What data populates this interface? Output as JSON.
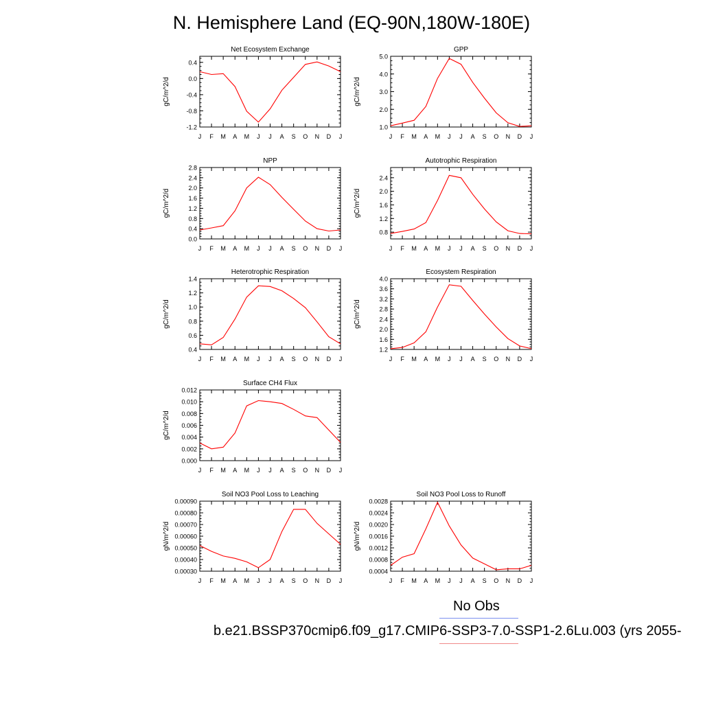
{
  "title": "N. Hemisphere Land (EQ-90N,180W-180E)",
  "legend": {
    "obs_label": "No Obs",
    "obs_color": "#7b8ff0",
    "case_label": "b.e21.BSSP370cmip6.f09_g17.CMIP6-SSP3-7.0-SSP1-2.6Lu.003 (yrs 2055-",
    "case_color": "#f08a8a"
  },
  "chart_data": [
    {
      "type": "line",
      "title": "Net Ecosystem Exchange",
      "ylabel": "gC/m^2/d",
      "categories": [
        "J",
        "F",
        "M",
        "A",
        "M",
        "J",
        "J",
        "A",
        "S",
        "O",
        "N",
        "D",
        "J"
      ],
      "ylim": [
        -1.2,
        0.55
      ],
      "yticks": [
        -1.2,
        -0.8,
        -0.4,
        0.0,
        0.4
      ],
      "ytick_labels": [
        "-1.2",
        "-0.8",
        "-0.4",
        "0.0",
        "0.4"
      ],
      "series": [
        {
          "values": [
            0.17,
            0.1,
            0.12,
            -0.2,
            -0.81,
            -1.08,
            -0.75,
            -0.29,
            0.03,
            0.35,
            0.41,
            0.31,
            0.17
          ],
          "color": "#ff0000"
        }
      ]
    },
    {
      "type": "line",
      "title": "GPP",
      "ylabel": "gC/m^2/d",
      "categories": [
        "J",
        "F",
        "M",
        "A",
        "M",
        "J",
        "J",
        "A",
        "S",
        "O",
        "N",
        "D",
        "J"
      ],
      "ylim": [
        1.0,
        5.0
      ],
      "yticks": [
        1.0,
        2.0,
        3.0,
        4.0,
        5.0
      ],
      "ytick_labels": [
        "1.0",
        "2.0",
        "3.0",
        "4.0",
        "5.0"
      ],
      "series": [
        {
          "values": [
            1.07,
            1.22,
            1.38,
            2.16,
            3.75,
            4.88,
            4.55,
            3.52,
            2.63,
            1.8,
            1.24,
            1.03,
            1.07
          ],
          "color": "#ff0000"
        }
      ]
    },
    {
      "type": "line",
      "title": "NPP",
      "ylabel": "gC/m^2/d",
      "categories": [
        "J",
        "F",
        "M",
        "A",
        "M",
        "J",
        "J",
        "A",
        "S",
        "O",
        "N",
        "D",
        "J"
      ],
      "ylim": [
        0.0,
        2.8
      ],
      "yticks": [
        0.0,
        0.4,
        0.8,
        1.2,
        1.6,
        2.0,
        2.4,
        2.8
      ],
      "ytick_labels": [
        "0.0",
        "0.4",
        "0.8",
        "1.2",
        "1.6",
        "2.0",
        "2.4",
        "2.8"
      ],
      "series": [
        {
          "values": [
            0.35,
            0.43,
            0.52,
            1.1,
            2.0,
            2.42,
            2.13,
            1.63,
            1.16,
            0.7,
            0.4,
            0.31,
            0.35
          ],
          "color": "#ff0000"
        }
      ]
    },
    {
      "type": "line",
      "title": "Autotrophic Respiration",
      "ylabel": "gC/m^2/d",
      "categories": [
        "J",
        "F",
        "M",
        "A",
        "M",
        "J",
        "J",
        "A",
        "S",
        "O",
        "N",
        "D",
        "J"
      ],
      "ylim": [
        0.6,
        2.7
      ],
      "yticks": [
        0.8,
        1.2,
        1.6,
        2.0,
        2.4
      ],
      "ytick_labels": [
        "0.8",
        "1.2",
        "1.6",
        "2.0",
        "2.4"
      ],
      "series": [
        {
          "values": [
            0.76,
            0.82,
            0.89,
            1.08,
            1.73,
            2.47,
            2.4,
            1.91,
            1.48,
            1.1,
            0.84,
            0.76,
            0.75
          ],
          "color": "#ff0000"
        }
      ]
    },
    {
      "type": "line",
      "title": "Heterotrophic Respiration",
      "ylabel": "gC/m^2/d",
      "categories": [
        "J",
        "F",
        "M",
        "A",
        "M",
        "J",
        "J",
        "A",
        "S",
        "O",
        "N",
        "D",
        "J"
      ],
      "ylim": [
        0.4,
        1.4
      ],
      "yticks": [
        0.4,
        0.6,
        0.8,
        1.0,
        1.2,
        1.4
      ],
      "ytick_labels": [
        "0.4",
        "0.6",
        "0.8",
        "1.0",
        "1.2",
        "1.4"
      ],
      "series": [
        {
          "values": [
            0.48,
            0.465,
            0.57,
            0.83,
            1.14,
            1.3,
            1.29,
            1.23,
            1.12,
            0.99,
            0.79,
            0.58,
            0.48
          ],
          "color": "#ff0000"
        }
      ]
    },
    {
      "type": "line",
      "title": "Ecosystem Respiration",
      "ylabel": "gC/m^2/d",
      "categories": [
        "J",
        "F",
        "M",
        "A",
        "M",
        "J",
        "J",
        "A",
        "S",
        "O",
        "N",
        "D",
        "J"
      ],
      "ylim": [
        1.2,
        4.0
      ],
      "yticks": [
        1.2,
        1.6,
        2.0,
        2.4,
        2.8,
        3.2,
        3.6,
        4.0
      ],
      "ytick_labels": [
        "1.2",
        "1.6",
        "2.0",
        "2.4",
        "2.8",
        "3.2",
        "3.6",
        "4.0"
      ],
      "series": [
        {
          "values": [
            1.23,
            1.28,
            1.46,
            1.9,
            2.88,
            3.76,
            3.7,
            3.14,
            2.6,
            2.09,
            1.63,
            1.34,
            1.23
          ],
          "color": "#ff0000"
        }
      ]
    },
    {
      "type": "line",
      "title": "Surface CH4 Flux",
      "ylabel": "gC/m^2/d",
      "categories": [
        "J",
        "F",
        "M",
        "A",
        "M",
        "J",
        "J",
        "A",
        "S",
        "O",
        "N",
        "D",
        "J"
      ],
      "ylim": [
        0.0,
        0.012
      ],
      "yticks": [
        0.0,
        0.002,
        0.004,
        0.006,
        0.008,
        0.01,
        0.012
      ],
      "ytick_labels": [
        "0.000",
        "0.002",
        "0.004",
        "0.006",
        "0.008",
        "0.010",
        "0.012"
      ],
      "series": [
        {
          "values": [
            0.003,
            0.002,
            0.0023,
            0.0047,
            0.0093,
            0.0102,
            0.01,
            0.0097,
            0.0087,
            0.0076,
            0.0073,
            0.0052,
            0.0031
          ],
          "color": "#ff0000"
        }
      ]
    },
    {
      "type": "line",
      "title": "Soil NO3 Pool Loss to Leaching",
      "ylabel": "gN/m^2/d",
      "categories": [
        "J",
        "F",
        "M",
        "A",
        "M",
        "J",
        "J",
        "A",
        "S",
        "O",
        "N",
        "D",
        "J"
      ],
      "ylim": [
        0.0003,
        0.0009
      ],
      "yticks": [
        0.0003,
        0.0004,
        0.0005,
        0.0006,
        0.0007,
        0.0008,
        0.0009
      ],
      "ytick_labels": [
        "0.00030",
        "0.00040",
        "0.00050",
        "0.00060",
        "0.00070",
        "0.00080",
        "0.00090"
      ],
      "series": [
        {
          "values": [
            0.00052,
            0.00047,
            0.00043,
            0.00041,
            0.00038,
            0.00033,
            0.0004,
            0.00064,
            0.00083,
            0.00083,
            0.00071,
            0.00062,
            0.00053
          ],
          "color": "#ff0000"
        }
      ]
    },
    {
      "type": "line",
      "title": "Soil NO3 Pool Loss to Runoff",
      "ylabel": "gN/m^2/d",
      "categories": [
        "J",
        "F",
        "M",
        "A",
        "M",
        "J",
        "J",
        "A",
        "S",
        "O",
        "N",
        "D",
        "J"
      ],
      "ylim": [
        0.0004,
        0.0028
      ],
      "yticks": [
        0.0004,
        0.0008,
        0.0012,
        0.0016,
        0.002,
        0.0024,
        0.0028
      ],
      "ytick_labels": [
        "0.0004",
        "0.0008",
        "0.0012",
        "0.0016",
        "0.0020",
        "0.0024",
        "0.0028"
      ],
      "series": [
        {
          "values": [
            0.0006,
            0.00088,
            0.001,
            0.00185,
            0.00276,
            0.00195,
            0.0013,
            0.00085,
            0.00065,
            0.00045,
            0.00048,
            0.00048,
            0.0006
          ],
          "color": "#ff0000"
        }
      ]
    }
  ]
}
